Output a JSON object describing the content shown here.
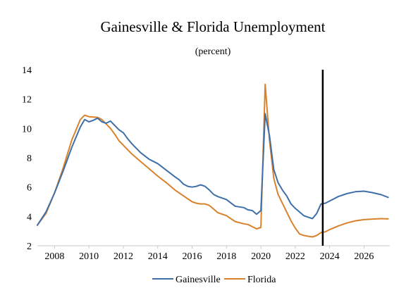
{
  "chart_data": {
    "type": "line",
    "title": "Gainesville & Florida Unemployment",
    "subtitle": "(percent)",
    "xlabel": "",
    "ylabel": "",
    "xlim": [
      2007.0,
      2027.5
    ],
    "ylim": [
      2,
      14
    ],
    "x_ticks": [
      2008,
      2010,
      2012,
      2014,
      2016,
      2018,
      2020,
      2022,
      2024,
      2026
    ],
    "y_ticks": [
      2,
      4,
      6,
      8,
      10,
      12,
      14
    ],
    "grid": false,
    "legend": "bottom",
    "vertical_line_x": 2023.6,
    "series": [
      {
        "name": "Gainesville",
        "color": "#3f6fa8",
        "points": [
          [
            2007.0,
            3.4
          ],
          [
            2007.5,
            4.3
          ],
          [
            2008.0,
            5.6
          ],
          [
            2008.5,
            7.1
          ],
          [
            2009.0,
            8.7
          ],
          [
            2009.5,
            10.1
          ],
          [
            2009.75,
            10.6
          ],
          [
            2010.0,
            10.45
          ],
          [
            2010.25,
            10.55
          ],
          [
            2010.5,
            10.7
          ],
          [
            2010.75,
            10.45
          ],
          [
            2011.0,
            10.35
          ],
          [
            2011.25,
            10.5
          ],
          [
            2011.5,
            10.2
          ],
          [
            2011.75,
            9.9
          ],
          [
            2012.0,
            9.7
          ],
          [
            2012.25,
            9.3
          ],
          [
            2012.5,
            8.95
          ],
          [
            2013.0,
            8.35
          ],
          [
            2013.5,
            7.9
          ],
          [
            2013.75,
            7.75
          ],
          [
            2014.0,
            7.6
          ],
          [
            2014.5,
            7.15
          ],
          [
            2015.0,
            6.7
          ],
          [
            2015.25,
            6.5
          ],
          [
            2015.5,
            6.2
          ],
          [
            2015.75,
            6.05
          ],
          [
            2016.0,
            6.0
          ],
          [
            2016.25,
            6.05
          ],
          [
            2016.5,
            6.15
          ],
          [
            2016.75,
            6.05
          ],
          [
            2017.0,
            5.8
          ],
          [
            2017.25,
            5.5
          ],
          [
            2017.5,
            5.35
          ],
          [
            2017.75,
            5.25
          ],
          [
            2018.0,
            5.15
          ],
          [
            2018.5,
            4.7
          ],
          [
            2019.0,
            4.6
          ],
          [
            2019.25,
            4.45
          ],
          [
            2019.5,
            4.4
          ],
          [
            2019.75,
            4.15
          ],
          [
            2020.0,
            4.4
          ],
          [
            2020.25,
            11.0
          ],
          [
            2020.5,
            9.5
          ],
          [
            2020.75,
            7.2
          ],
          [
            2021.0,
            6.3
          ],
          [
            2021.25,
            5.8
          ],
          [
            2021.5,
            5.4
          ],
          [
            2021.75,
            4.85
          ],
          [
            2022.0,
            4.55
          ],
          [
            2022.25,
            4.3
          ],
          [
            2022.5,
            4.05
          ],
          [
            2022.75,
            3.95
          ],
          [
            2023.0,
            3.85
          ],
          [
            2023.25,
            4.2
          ],
          [
            2023.5,
            4.85
          ],
          [
            2023.75,
            4.9
          ],
          [
            2024.0,
            5.05
          ],
          [
            2024.5,
            5.35
          ],
          [
            2025.0,
            5.55
          ],
          [
            2025.5,
            5.68
          ],
          [
            2026.0,
            5.72
          ],
          [
            2026.5,
            5.62
          ],
          [
            2027.0,
            5.48
          ],
          [
            2027.4,
            5.3
          ]
        ]
      },
      {
        "name": "Florida",
        "color": "#d9822b",
        "points": [
          [
            2007.0,
            3.4
          ],
          [
            2007.5,
            4.2
          ],
          [
            2008.0,
            5.6
          ],
          [
            2008.5,
            7.3
          ],
          [
            2009.0,
            9.2
          ],
          [
            2009.5,
            10.6
          ],
          [
            2009.75,
            10.9
          ],
          [
            2010.0,
            10.8
          ],
          [
            2010.5,
            10.75
          ],
          [
            2010.75,
            10.6
          ],
          [
            2011.0,
            10.3
          ],
          [
            2011.25,
            10.0
          ],
          [
            2011.5,
            9.6
          ],
          [
            2011.75,
            9.15
          ],
          [
            2012.0,
            8.85
          ],
          [
            2012.5,
            8.25
          ],
          [
            2013.0,
            7.75
          ],
          [
            2013.5,
            7.25
          ],
          [
            2014.0,
            6.75
          ],
          [
            2014.5,
            6.3
          ],
          [
            2015.0,
            5.8
          ],
          [
            2015.5,
            5.4
          ],
          [
            2016.0,
            5.0
          ],
          [
            2016.25,
            4.9
          ],
          [
            2016.5,
            4.85
          ],
          [
            2016.75,
            4.85
          ],
          [
            2017.0,
            4.75
          ],
          [
            2017.25,
            4.5
          ],
          [
            2017.5,
            4.25
          ],
          [
            2018.0,
            4.05
          ],
          [
            2018.5,
            3.65
          ],
          [
            2019.0,
            3.5
          ],
          [
            2019.25,
            3.45
          ],
          [
            2019.5,
            3.3
          ],
          [
            2019.75,
            3.15
          ],
          [
            2020.0,
            3.25
          ],
          [
            2020.25,
            13.0
          ],
          [
            2020.5,
            9.2
          ],
          [
            2020.75,
            6.6
          ],
          [
            2021.0,
            5.5
          ],
          [
            2021.25,
            4.9
          ],
          [
            2021.5,
            4.3
          ],
          [
            2021.75,
            3.7
          ],
          [
            2022.0,
            3.2
          ],
          [
            2022.25,
            2.8
          ],
          [
            2022.5,
            2.7
          ],
          [
            2022.75,
            2.65
          ],
          [
            2023.0,
            2.6
          ],
          [
            2023.25,
            2.7
          ],
          [
            2023.5,
            2.9
          ],
          [
            2023.75,
            2.95
          ],
          [
            2024.0,
            3.1
          ],
          [
            2024.5,
            3.35
          ],
          [
            2025.0,
            3.55
          ],
          [
            2025.5,
            3.7
          ],
          [
            2026.0,
            3.78
          ],
          [
            2026.5,
            3.82
          ],
          [
            2027.0,
            3.85
          ],
          [
            2027.4,
            3.83
          ]
        ]
      }
    ]
  }
}
